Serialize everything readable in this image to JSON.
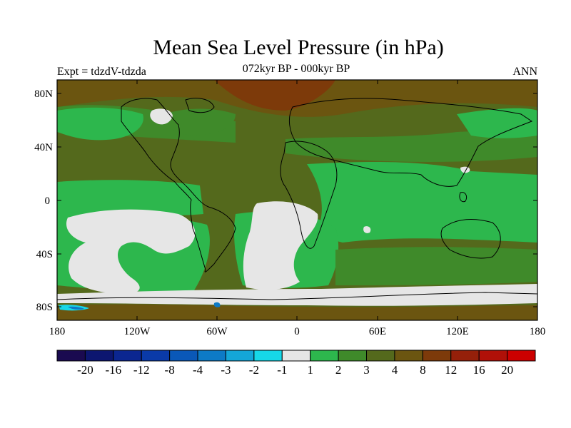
{
  "title": "Mean Sea Level Pressure (in hPa)",
  "experiment": "Expt = tdzdV-tdzda",
  "period": "072kyr BP - 000kyr BP",
  "season": "ANN",
  "lat_ticks": [
    "80N",
    "40N",
    "0",
    "40S",
    "80S"
  ],
  "lon_ticks": [
    "180",
    "120W",
    "60W",
    "0",
    "60E",
    "120E",
    "180"
  ],
  "colorbar": {
    "colors": [
      "#1a0a50",
      "#0c1670",
      "#0b2690",
      "#0a3aa8",
      "#0a58b8",
      "#0d7ac6",
      "#14a6d8",
      "#16d8e8",
      "#e6e6e6",
      "#2db74d",
      "#3f8a2a",
      "#54691c",
      "#6b5510",
      "#7d3a0a",
      "#95200a",
      "#b01008",
      "#cc0000"
    ],
    "labels": [
      "-20",
      "-16",
      "-12",
      "-8",
      "-4",
      "-3",
      "-2",
      "-1",
      "1",
      "2",
      "3",
      "4",
      "8",
      "12",
      "16",
      "20"
    ]
  },
  "map_colors": {
    "ocean_green": "#2db74d",
    "dark_green": "#3f8a2a",
    "olive": "#54691c",
    "brown": "#6b5510",
    "dark_brown": "#7d3a0a",
    "light_gray": "#e6e6e6",
    "cyan": "#16d8e8",
    "blue": "#0d7ac6"
  }
}
